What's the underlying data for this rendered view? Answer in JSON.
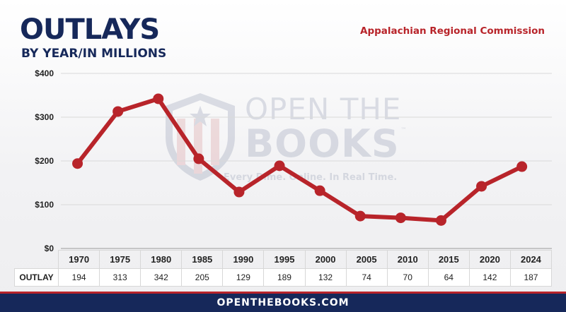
{
  "header": {
    "title": "OUTLAYS",
    "subtitle": "BY YEAR/IN MILLIONS",
    "agency": "Appalachian Regional Commission"
  },
  "watermark": {
    "line1": "OPEN THE",
    "line2": "BOOKS",
    "tm": "™",
    "tagline": "Every Dime. Online. In Real Time."
  },
  "colors": {
    "line": "#b8242a",
    "navy": "#16285a",
    "red_accent": "#b8242a"
  },
  "chart_data": {
    "type": "line",
    "categories": [
      "1970",
      "1975",
      "1980",
      "1985",
      "1990",
      "1995",
      "2000",
      "2005",
      "2010",
      "2015",
      "2020",
      "2024"
    ],
    "values": [
      194,
      313,
      342,
      205,
      129,
      189,
      132,
      74,
      70,
      64,
      142,
      187
    ],
    "y_ticks": [
      "$0",
      "$100",
      "$200",
      "$300",
      "$400"
    ],
    "ylim": [
      0,
      400
    ],
    "grid": true,
    "row_label": "OUTLAY"
  },
  "footer": {
    "site": "OPENTHEBOOKS.COM"
  }
}
